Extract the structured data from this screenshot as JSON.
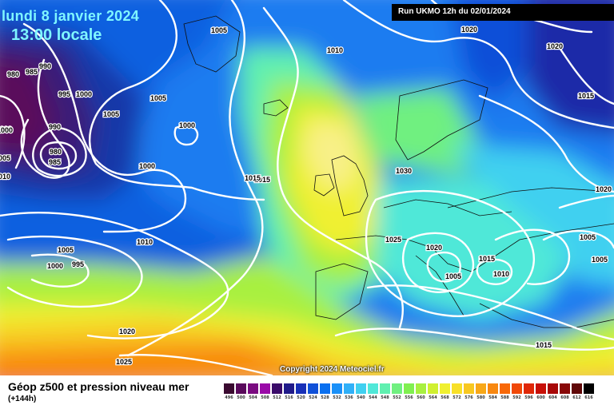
{
  "header": {
    "date": "lundi 8 janvier 2024",
    "time": "13:00 locale"
  },
  "run_info": "Run UKMO 12h du 02/01/2024",
  "copyright": "Copyright 2024 Meteociel.fr",
  "map_title": "Géop z500 et pression niveau mer",
  "forecast_offset": "(+144h)",
  "legend": {
    "values": [
      "496",
      "500",
      "504",
      "508",
      "512",
      "516",
      "520",
      "524",
      "528",
      "532",
      "536",
      "540",
      "544",
      "548",
      "552",
      "556",
      "560",
      "564",
      "568",
      "572",
      "576",
      "580",
      "584",
      "588",
      "592",
      "596",
      "600",
      "604",
      "608",
      "612",
      "616"
    ],
    "colors": [
      "#3a0a30",
      "#5a0a5c",
      "#7a0a80",
      "#9a0aa8",
      "#3a0a6a",
      "#201a8a",
      "#1830b8",
      "#1050d8",
      "#0a70f0",
      "#1a90f8",
      "#30b0f8",
      "#40d0f0",
      "#50e8d8",
      "#60f0b0",
      "#70f080",
      "#80f050",
      "#a8f040",
      "#d0f030",
      "#f0f030",
      "#f8e028",
      "#f8c820",
      "#f8a818",
      "#f88810",
      "#f86808",
      "#f04808",
      "#e02808",
      "#c81008",
      "#a80808",
      "#880808",
      "#600808",
      "#000000"
    ]
  },
  "isobar_labels": [
    "1005",
    "1010",
    "1020",
    "1020",
    "990",
    "985",
    "980",
    "995",
    "1000",
    "1005",
    "1000",
    "990",
    "980",
    "985",
    "1000",
    "1005",
    "1015",
    "1000",
    "1005",
    "1010",
    "1000",
    "995",
    "1005",
    "1015",
    "1030",
    "1025",
    "1020",
    "1015",
    "1005",
    "1010",
    "1005",
    "1020",
    "1025",
    "1015",
    "1005",
    "1020",
    "1015",
    "1000",
    "010"
  ],
  "colors": {
    "header_text": "#7ff6ff",
    "run_box": "#000000",
    "isobar": "#ffffff"
  }
}
